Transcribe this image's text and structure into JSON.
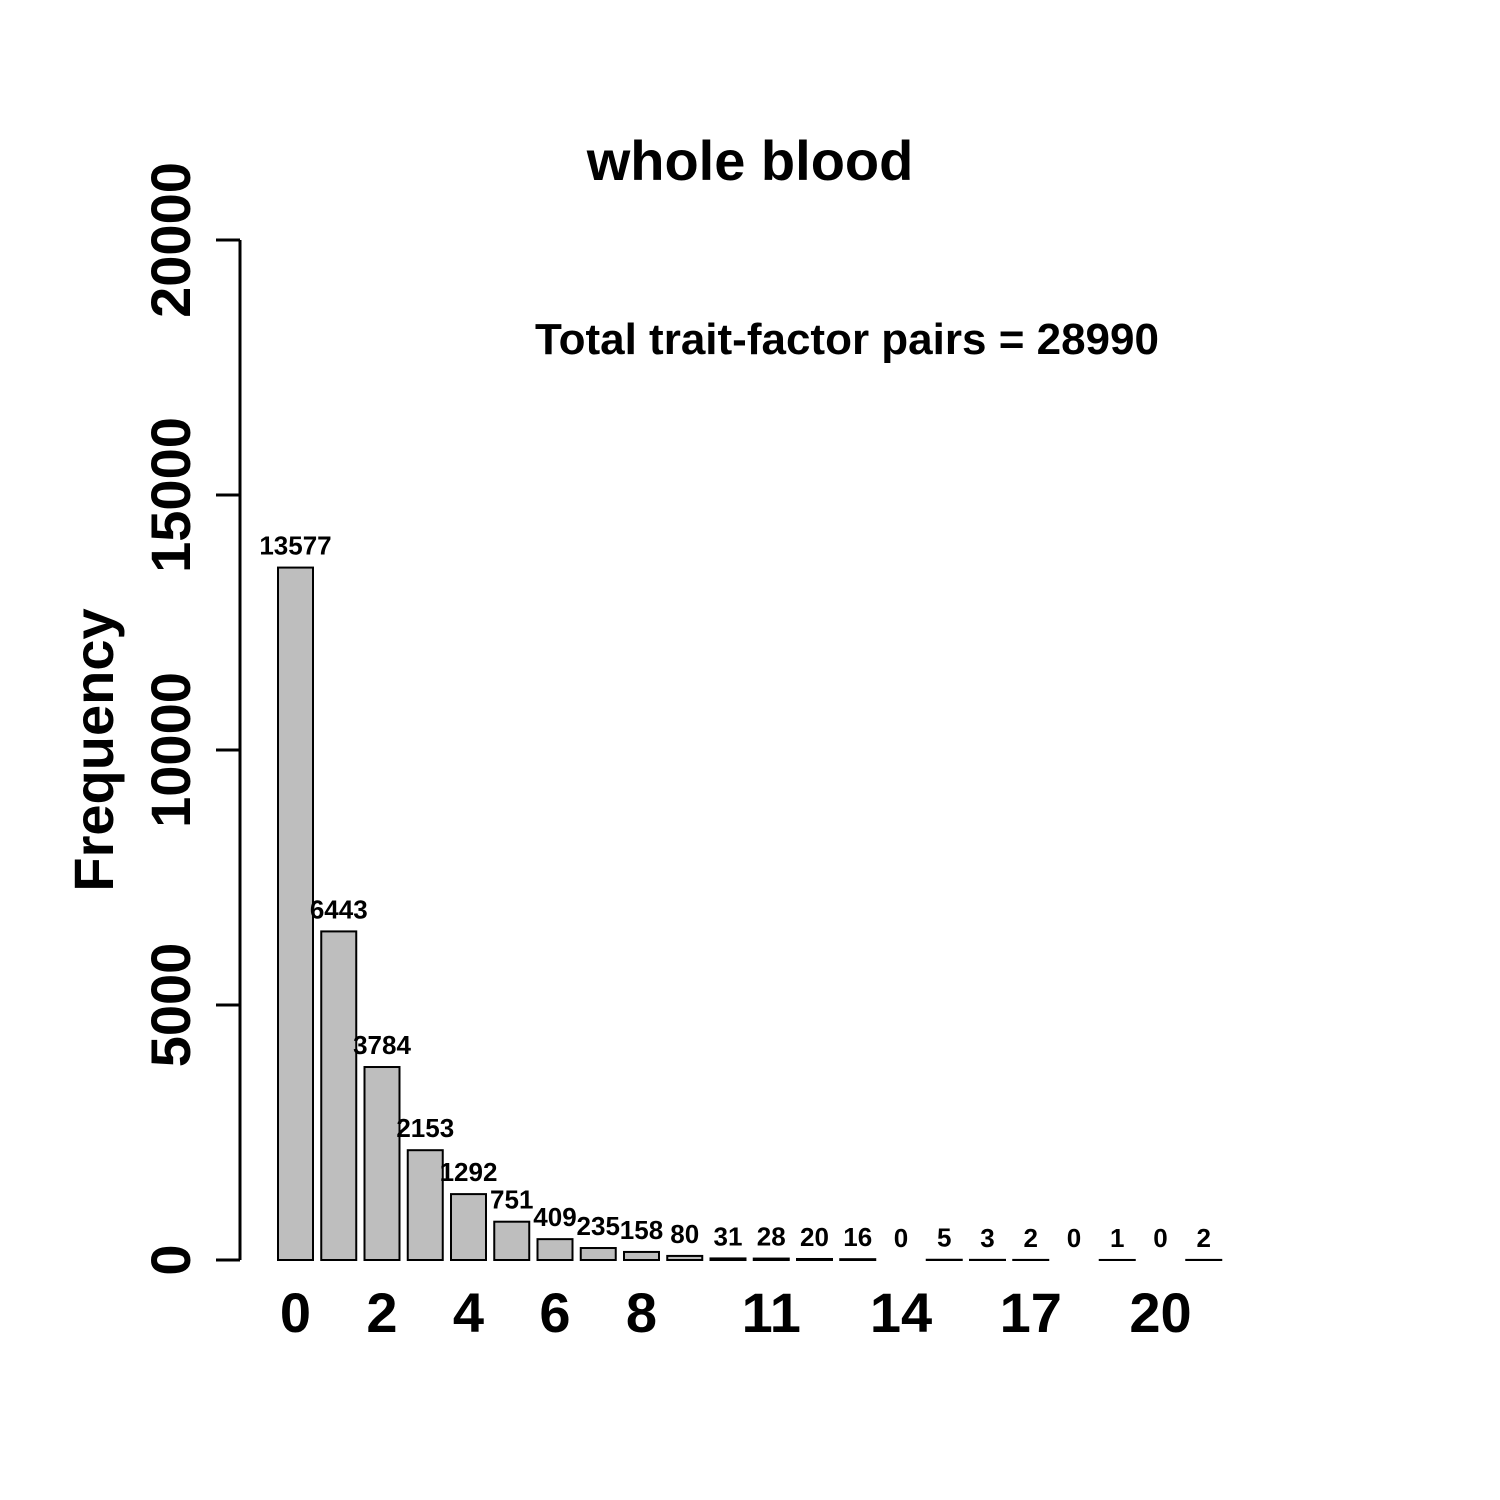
{
  "chart_data": {
    "type": "bar",
    "title": "whole blood",
    "ylabel": "Frequency",
    "xlabel": "",
    "annotation": "Total trait-factor pairs = 28990",
    "categories": [
      "0",
      "1",
      "2",
      "3",
      "4",
      "5",
      "6",
      "7",
      "8",
      "9",
      "10",
      "11",
      "12",
      "13",
      "14",
      "15",
      "16",
      "17",
      "18",
      "19",
      "20",
      "21"
    ],
    "values": [
      13577,
      6443,
      3784,
      2153,
      1292,
      751,
      409,
      235,
      158,
      80,
      31,
      28,
      20,
      16,
      0,
      5,
      3,
      2,
      0,
      1,
      0,
      2
    ],
    "value_labels": [
      "13577",
      "6443",
      "3784",
      "2153",
      "1292",
      "751",
      "409",
      "235",
      "158",
      "80",
      "31",
      "28",
      "20",
      "16",
      "0",
      "5",
      "3",
      "2",
      "0",
      "1",
      "0",
      "2"
    ],
    "x_tick_labels": [
      "0",
      "2",
      "4",
      "6",
      "8",
      "11",
      "14",
      "17",
      "20"
    ],
    "y_tick_labels": [
      "0",
      "5000",
      "10000",
      "15000",
      "20000"
    ],
    "yticks": [
      0,
      5000,
      10000,
      15000,
      20000
    ],
    "ylim": [
      0,
      20000
    ],
    "bar_color": "#bebebe",
    "grid": false,
    "legend": "none"
  }
}
